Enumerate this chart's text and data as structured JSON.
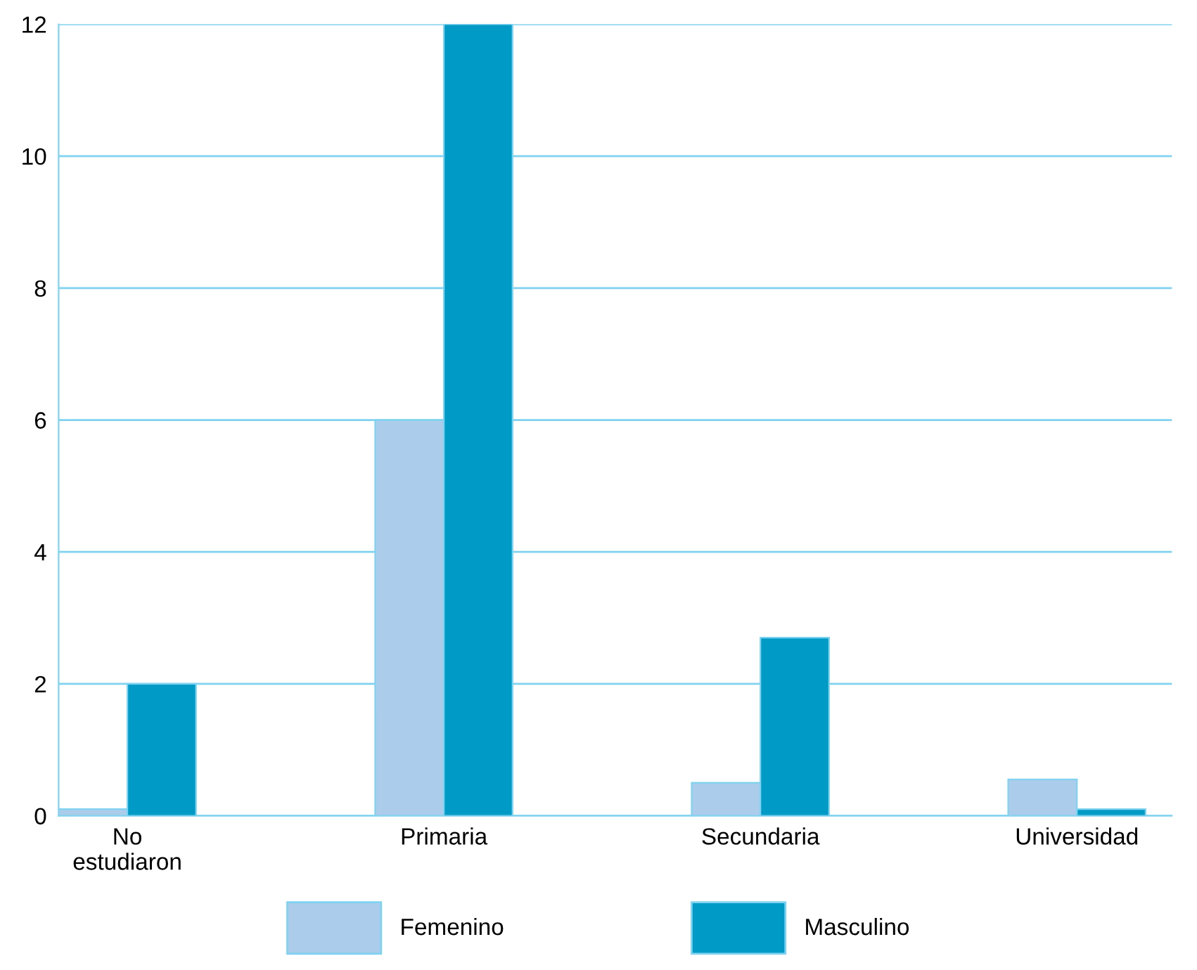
{
  "chart_data": {
    "type": "bar",
    "categories": [
      "No\nestudiaron",
      "Primaria",
      "Secundaria",
      "Universidad"
    ],
    "series": [
      {
        "name": "Femenino",
        "color": "#abcdeb",
        "values": [
          0.1,
          6,
          0.5,
          0.55
        ]
      },
      {
        "name": "Masculino",
        "color": "#009ac7",
        "values": [
          2,
          12,
          2.7,
          0.1
        ]
      }
    ],
    "ylim": [
      0,
      12
    ],
    "yticks": [
      0,
      2,
      4,
      6,
      8,
      10,
      12
    ],
    "grid": "y",
    "legend": "bottom"
  }
}
